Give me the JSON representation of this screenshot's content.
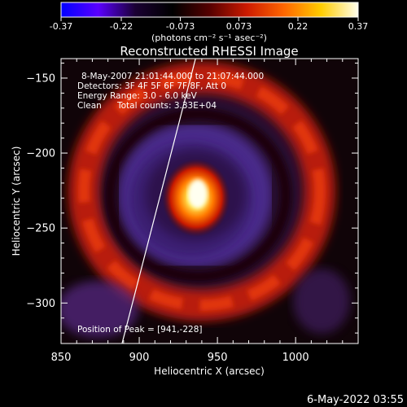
{
  "colorbar": {
    "ticks": [
      "-0.37",
      "-0.22",
      "-0.073",
      "0.073",
      "0.22",
      "0.37"
    ],
    "min": -0.37,
    "max": 0.37,
    "unit_label": "(photons cm⁻² s⁻¹ asec⁻²)",
    "colors": [
      "#0000ff",
      "#5a00ff",
      "#1a0033",
      "#000000",
      "#550000",
      "#cc1a00",
      "#ff6600",
      "#ffcc00",
      "#ffffee"
    ]
  },
  "chart_data": {
    "type": "heatmap",
    "title": "Reconstructed RHESSI Image",
    "xlabel": "Heliocentric X (arcsec)",
    "ylabel": "Heliocentric Y (arcsec)",
    "xlim": [
      850,
      1040
    ],
    "ylim": [
      -327,
      -137
    ],
    "x_ticks": [
      850,
      900,
      950,
      1000
    ],
    "y_ticks": [
      -150,
      -200,
      -250,
      -300
    ],
    "peak": [
      941,
      -228
    ],
    "limb_line": [
      [
        889,
        -327
      ],
      [
        936,
        -137
      ]
    ],
    "annotations": {
      "time_range": "8-May-2007 21:01:44.000 to 21:07:44.000",
      "detectors": "Detectors: 3F 4F 5F 6F 7F 8F, Att 0",
      "energy": "Energy Range: 3.0 - 6.0 keV",
      "method": "Clean",
      "counts": "Total counts: 3.33E+04",
      "peak_text": "Position of Peak = [941,-228]"
    }
  },
  "footer": {
    "timestamp": "6-May-2022 03:55"
  }
}
